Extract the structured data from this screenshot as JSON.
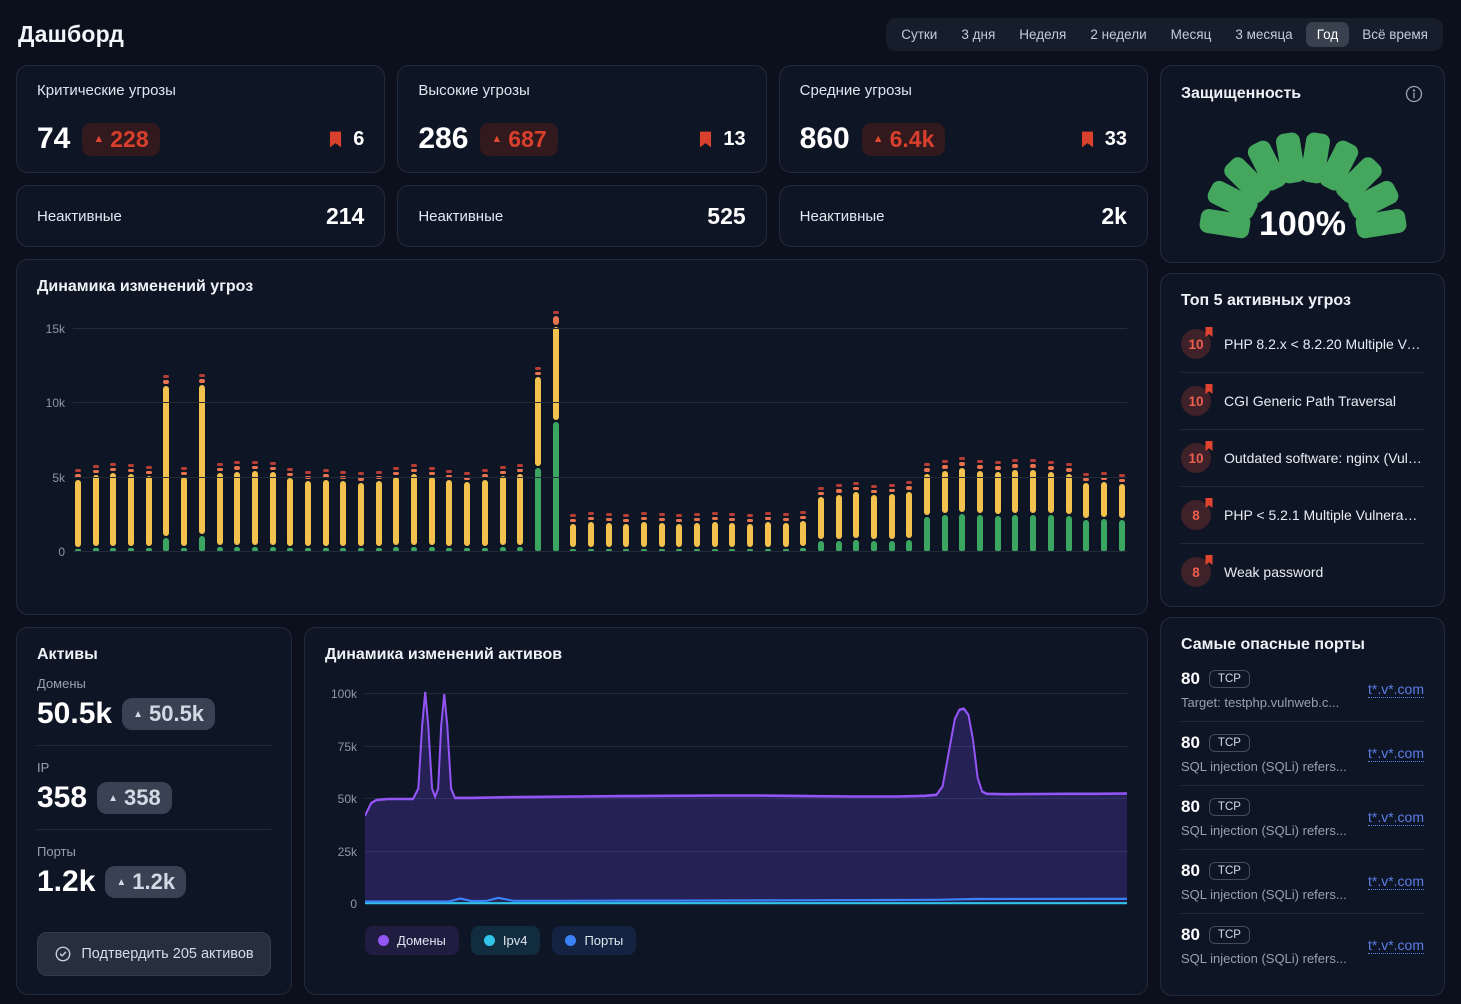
{
  "page": {
    "title": "Дашборд"
  },
  "time_range": {
    "options": [
      "Сутки",
      "3 дня",
      "Неделя",
      "2 недели",
      "Месяц",
      "3 месяца",
      "Год",
      "Всё время"
    ],
    "selected": "Год",
    "selected_index": 6
  },
  "stat_cards": [
    {
      "title": "Критические угрозы",
      "value": "74",
      "delta": "228",
      "bookmark_count": "6"
    },
    {
      "title": "Высокие угрозы",
      "value": "286",
      "delta": "687",
      "bookmark_count": "13"
    },
    {
      "title": "Средние угрозы",
      "value": "860",
      "delta": "6.4k",
      "bookmark_count": "33"
    }
  ],
  "inactive_cards": [
    {
      "label": "Неактивные",
      "value": "214"
    },
    {
      "label": "Неактивные",
      "value": "525"
    },
    {
      "label": "Неактивные",
      "value": "2k"
    }
  ],
  "gauge": {
    "title": "Защищенность",
    "percent": "100%",
    "segments": 10,
    "color": "#45a75d"
  },
  "top_threats": {
    "title": "Топ 5 активных угроз",
    "items": [
      {
        "score": "10",
        "label": "PHP 8.2.x < 8.2.20 Multiple Vul..."
      },
      {
        "score": "10",
        "label": "CGI Generic Path Traversal"
      },
      {
        "score": "10",
        "label": "Outdated software: nginx (Vuln..."
      },
      {
        "score": "8",
        "label": "PHP < 5.2.1 Multiple Vulnerabilit..."
      },
      {
        "score": "8",
        "label": "Weak password"
      }
    ]
  },
  "assets": {
    "title": "Активы",
    "items": [
      {
        "label": "Домены",
        "value": "50.5k",
        "delta": "50.5k"
      },
      {
        "label": "IP",
        "value": "358",
        "delta": "358"
      },
      {
        "label": "Порты",
        "value": "1.2k",
        "delta": "1.2k"
      }
    ],
    "confirm_button": "Подтвердить 205 активов"
  },
  "dangerous_ports": {
    "title": "Самые опасные порты",
    "rows": [
      {
        "port": "80",
        "proto": "TCP",
        "link": "t*.v*.com",
        "desc": "Target: testphp.vulnweb.c..."
      },
      {
        "port": "80",
        "proto": "TCP",
        "link": "t*.v*.com",
        "desc": "SQL injection (SQLi) refers..."
      },
      {
        "port": "80",
        "proto": "TCP",
        "link": "t*.v*.com",
        "desc": "SQL injection (SQLi) refers..."
      },
      {
        "port": "80",
        "proto": "TCP",
        "link": "t*.v*.com",
        "desc": "SQL injection (SQLi) refers..."
      },
      {
        "port": "80",
        "proto": "TCP",
        "link": "t*.v*.com",
        "desc": "SQL injection (SQLi) refers..."
      }
    ]
  },
  "chart_data": [
    {
      "id": "threats_dynamics",
      "type": "bar",
      "stacked": true,
      "title": "Динамика изменений угроз",
      "ylim": [
        0,
        15000
      ],
      "yticks": [
        "0",
        "5k",
        "10k",
        "15k"
      ],
      "values_unit": "thousands",
      "segment_order": [
        "green",
        "yellow",
        "orange",
        "red"
      ],
      "segment_colors": {
        "green": "#3BA662",
        "yellow": "#F2C14E",
        "orange": "#E8744F",
        "red": "#B53D35"
      },
      "bars": [
        [
          0.35,
          4.65,
          0.35,
          0.15
        ],
        [
          0.4,
          4.9,
          0.35,
          0.15
        ],
        [
          0.4,
          5.05,
          0.35,
          0.15
        ],
        [
          0.4,
          5.0,
          0.35,
          0.15
        ],
        [
          0.4,
          4.85,
          0.35,
          0.15
        ],
        [
          1.1,
          10.2,
          0.4,
          0.15
        ],
        [
          0.4,
          4.8,
          0.35,
          0.15
        ],
        [
          1.2,
          10.15,
          0.4,
          0.15
        ],
        [
          0.45,
          5.0,
          0.35,
          0.15
        ],
        [
          0.45,
          5.1,
          0.35,
          0.15
        ],
        [
          0.45,
          5.15,
          0.35,
          0.15
        ],
        [
          0.45,
          5.05,
          0.35,
          0.15
        ],
        [
          0.4,
          4.7,
          0.35,
          0.15
        ],
        [
          0.4,
          4.5,
          0.35,
          0.15
        ],
        [
          0.4,
          4.6,
          0.35,
          0.15
        ],
        [
          0.4,
          4.5,
          0.35,
          0.15
        ],
        [
          0.4,
          4.4,
          0.35,
          0.15
        ],
        [
          0.4,
          4.5,
          0.35,
          0.15
        ],
        [
          0.45,
          4.75,
          0.35,
          0.15
        ],
        [
          0.45,
          4.95,
          0.35,
          0.15
        ],
        [
          0.45,
          4.7,
          0.35,
          0.15
        ],
        [
          0.4,
          4.55,
          0.35,
          0.15
        ],
        [
          0.4,
          4.45,
          0.35,
          0.15
        ],
        [
          0.4,
          4.6,
          0.35,
          0.15
        ],
        [
          0.45,
          4.8,
          0.35,
          0.15
        ],
        [
          0.45,
          4.9,
          0.35,
          0.15
        ],
        [
          5.8,
          6.1,
          0.3,
          0.1
        ],
        [
          8.9,
          6.4,
          0.7,
          0.2
        ],
        [
          0.35,
          1.7,
          0.3,
          0.1
        ],
        [
          0.35,
          1.8,
          0.3,
          0.1
        ],
        [
          0.35,
          1.75,
          0.3,
          0.1
        ],
        [
          0.35,
          1.7,
          0.3,
          0.1
        ],
        [
          0.35,
          1.8,
          0.3,
          0.1
        ],
        [
          0.35,
          1.75,
          0.3,
          0.1
        ],
        [
          0.35,
          1.7,
          0.3,
          0.1
        ],
        [
          0.35,
          1.75,
          0.3,
          0.1
        ],
        [
          0.35,
          1.8,
          0.3,
          0.1
        ],
        [
          0.35,
          1.75,
          0.3,
          0.1
        ],
        [
          0.35,
          1.7,
          0.3,
          0.1
        ],
        [
          0.35,
          1.8,
          0.3,
          0.1
        ],
        [
          0.35,
          1.75,
          0.3,
          0.1
        ],
        [
          0.4,
          1.85,
          0.3,
          0.1
        ],
        [
          0.9,
          2.95,
          0.35,
          0.15
        ],
        [
          0.9,
          3.1,
          0.35,
          0.15
        ],
        [
          0.95,
          3.2,
          0.35,
          0.15
        ],
        [
          0.9,
          3.05,
          0.35,
          0.15
        ],
        [
          0.9,
          3.15,
          0.35,
          0.15
        ],
        [
          0.95,
          3.25,
          0.35,
          0.15
        ],
        [
          2.5,
          2.9,
          0.4,
          0.15
        ],
        [
          2.6,
          3.0,
          0.4,
          0.15
        ],
        [
          2.7,
          3.1,
          0.4,
          0.15
        ],
        [
          2.6,
          3.0,
          0.4,
          0.15
        ],
        [
          2.55,
          2.95,
          0.4,
          0.15
        ],
        [
          2.6,
          3.05,
          0.4,
          0.15
        ],
        [
          2.65,
          3.0,
          0.4,
          0.15
        ],
        [
          2.6,
          2.95,
          0.4,
          0.15
        ],
        [
          2.55,
          2.85,
          0.4,
          0.15
        ],
        [
          2.3,
          2.45,
          0.35,
          0.15
        ],
        [
          2.35,
          2.5,
          0.35,
          0.15
        ],
        [
          2.3,
          2.4,
          0.35,
          0.15
        ]
      ]
    },
    {
      "id": "assets_dynamics",
      "type": "area",
      "title": "Динамика изменений активов",
      "ylim": [
        0,
        100000
      ],
      "yticks": [
        "0",
        "25k",
        "50k",
        "75k",
        "100k"
      ],
      "x_unit": "percent_of_range",
      "values_unit": "thousands",
      "legend_position": "bottom",
      "series": [
        {
          "name": "Домены",
          "color": "#9355f5",
          "fill": "rgba(124,77,255,0.22)",
          "points": [
            [
              0,
              42
            ],
            [
              0.8,
              48
            ],
            [
              1.5,
              49.5
            ],
            [
              3,
              50
            ],
            [
              5,
              50
            ],
            [
              6.3,
              50
            ],
            [
              7,
              55
            ],
            [
              7.5,
              85
            ],
            [
              7.9,
              101
            ],
            [
              8.3,
              85
            ],
            [
              8.8,
              55
            ],
            [
              9.2,
              51
            ],
            [
              9.6,
              55
            ],
            [
              10,
              85
            ],
            [
              10.4,
              100
            ],
            [
              10.8,
              85
            ],
            [
              11.3,
              55
            ],
            [
              11.8,
              50.5
            ],
            [
              14,
              50.5
            ],
            [
              18,
              50.8
            ],
            [
              22,
              51
            ],
            [
              28,
              51.2
            ],
            [
              34,
              51.4
            ],
            [
              40,
              51.5
            ],
            [
              46,
              51.6
            ],
            [
              52,
              51.6
            ],
            [
              58,
              51.4
            ],
            [
              64,
              51.2
            ],
            [
              70,
              51.2
            ],
            [
              73.5,
              51.5
            ],
            [
              75,
              52
            ],
            [
              75.8,
              56
            ],
            [
              76.6,
              72
            ],
            [
              77.4,
              88
            ],
            [
              78,
              92.5
            ],
            [
              78.6,
              93
            ],
            [
              79.2,
              90
            ],
            [
              79.8,
              78
            ],
            [
              80.4,
              60
            ],
            [
              81,
              53.5
            ],
            [
              81.6,
              52.5
            ],
            [
              84,
              52.3
            ],
            [
              88,
              52.4
            ],
            [
              92,
              52.5
            ],
            [
              96,
              52.5
            ],
            [
              100,
              52.6
            ]
          ]
        },
        {
          "name": "Ipv4",
          "color": "#2fc4e8",
          "points": [
            [
              0,
              0.36
            ],
            [
              25,
              0.38
            ],
            [
              50,
              0.4
            ],
            [
              75,
              0.4
            ],
            [
              100,
              0.4
            ]
          ]
        },
        {
          "name": "Порты",
          "color": "#3b82f6",
          "points": [
            [
              0,
              1.2
            ],
            [
              8,
              1.2
            ],
            [
              11,
              1.2
            ],
            [
              12.5,
              2.6
            ],
            [
              14,
              1.4
            ],
            [
              16,
              1.5
            ],
            [
              17.5,
              2.9
            ],
            [
              19.5,
              1.5
            ],
            [
              25,
              1.5
            ],
            [
              40,
              1.6
            ],
            [
              60,
              1.8
            ],
            [
              75,
              2
            ],
            [
              80,
              2.4
            ],
            [
              100,
              2.5
            ]
          ]
        }
      ]
    }
  ]
}
